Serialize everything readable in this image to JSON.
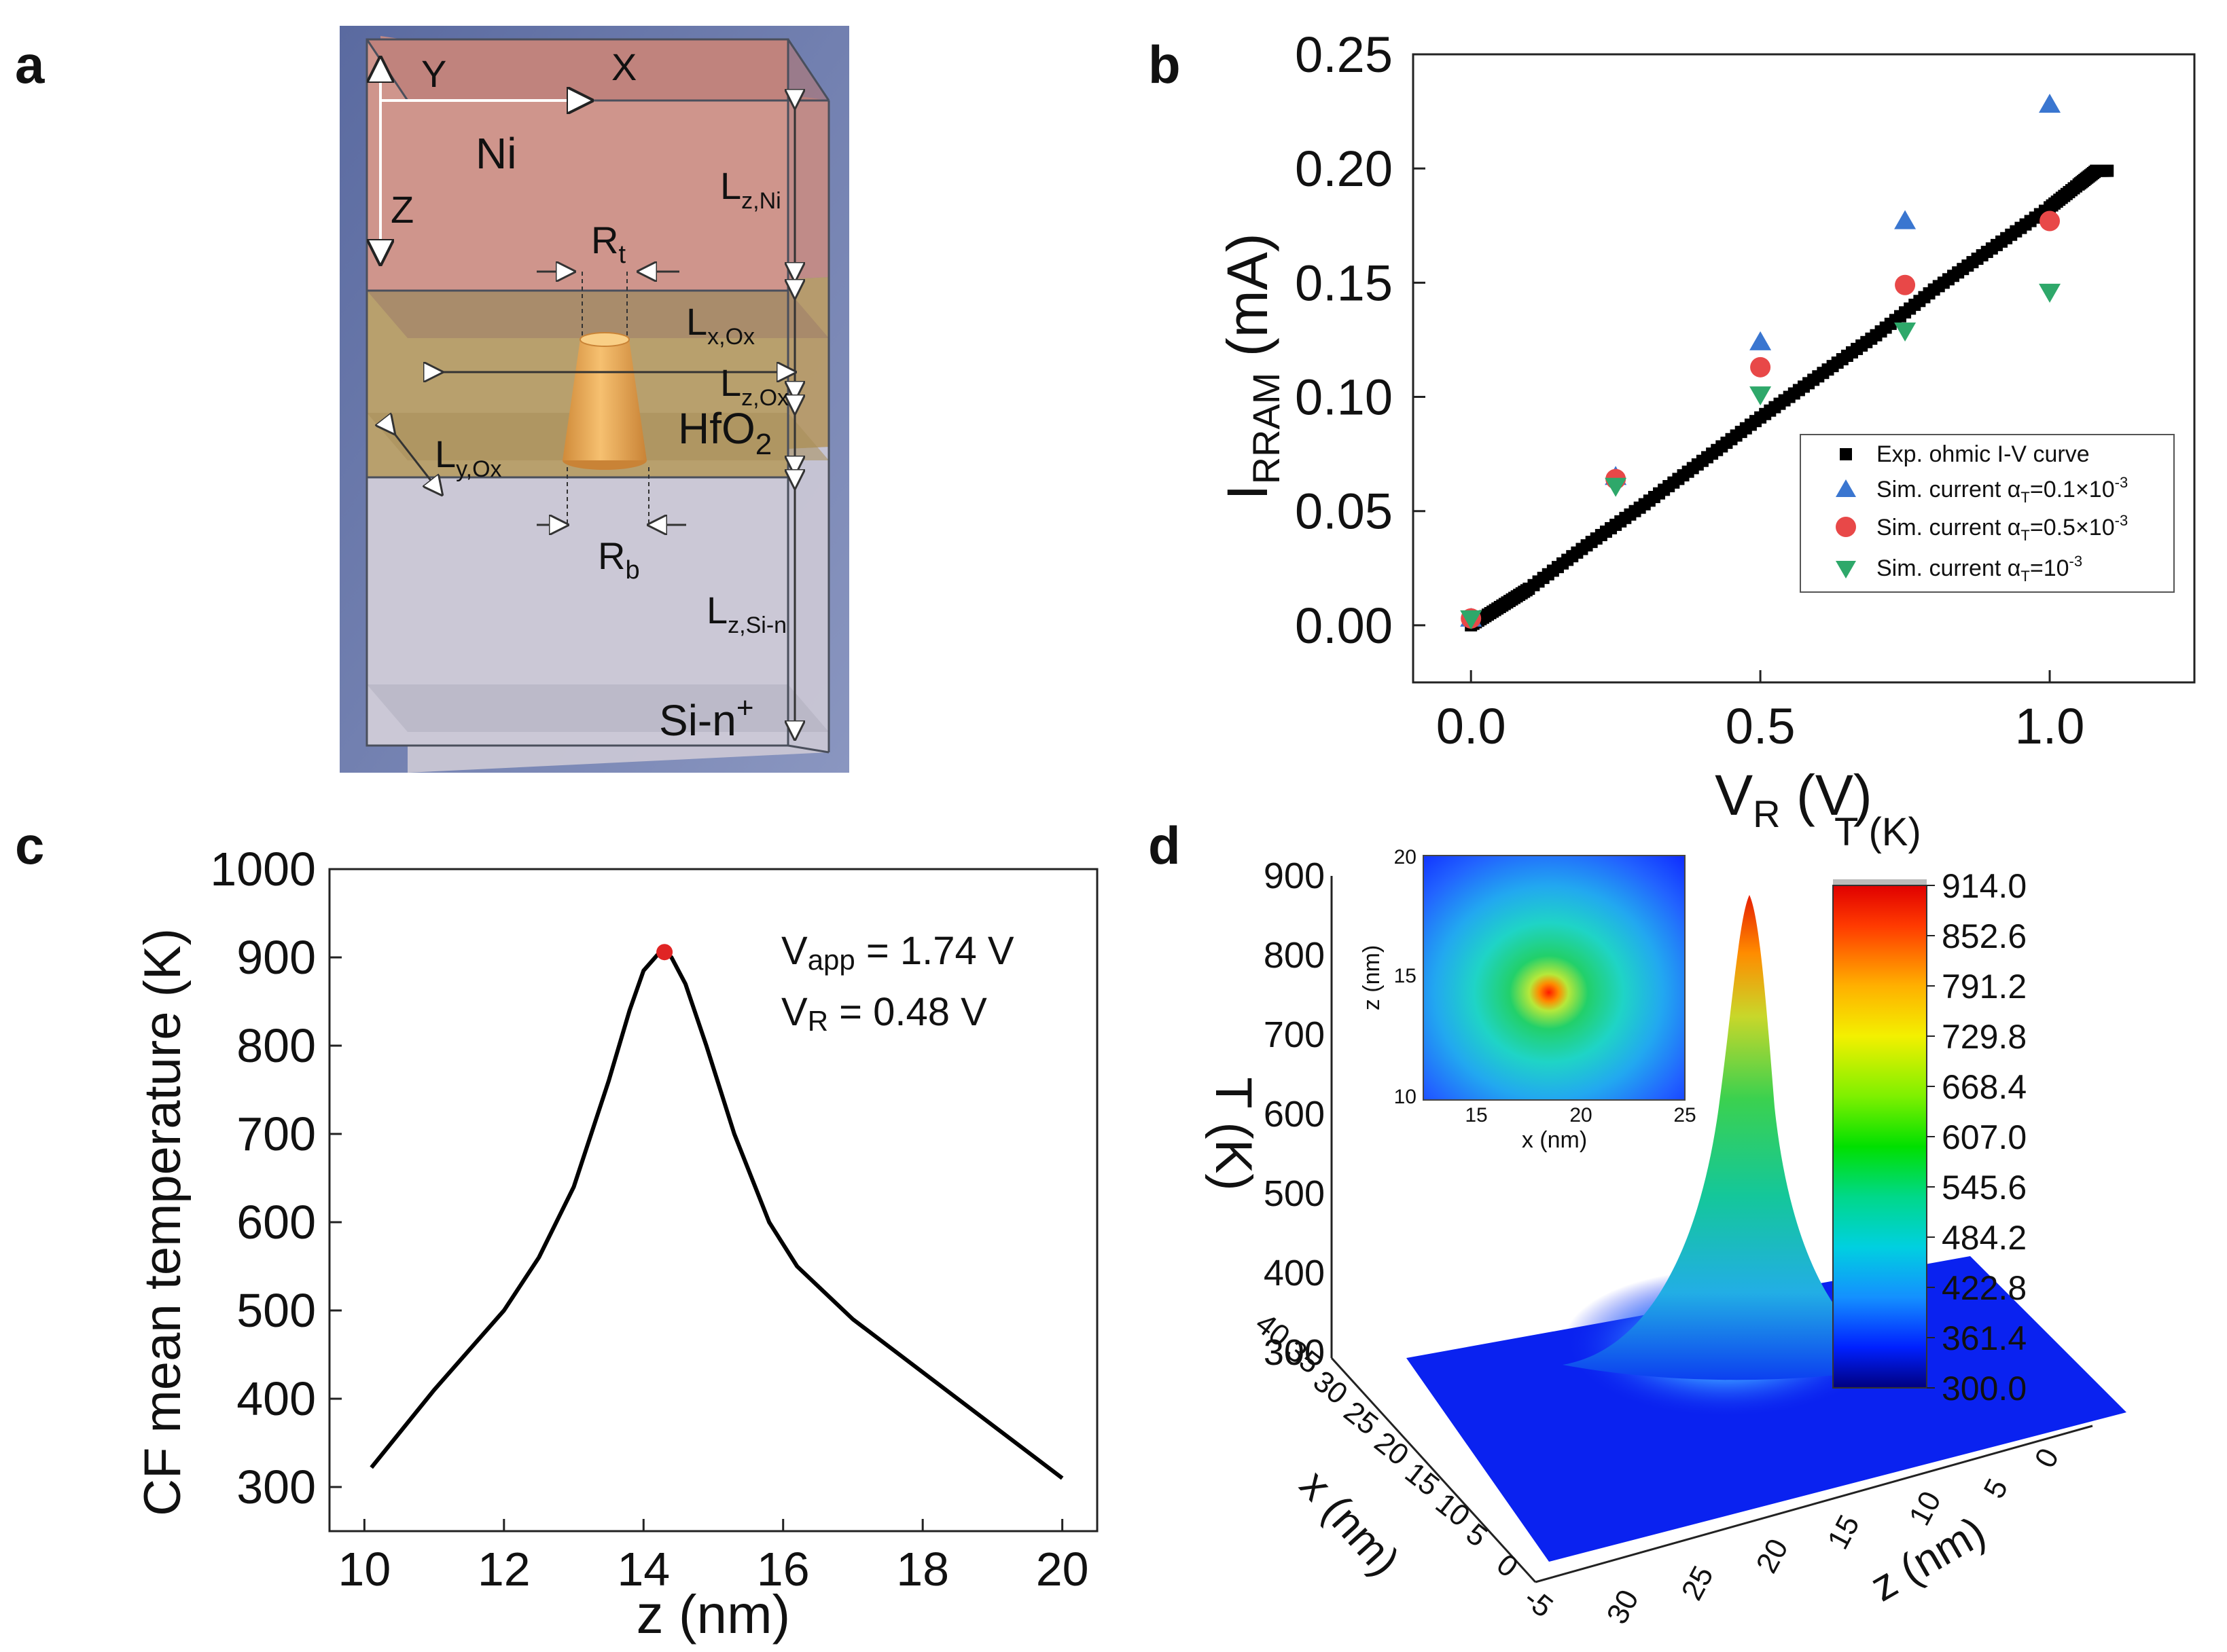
{
  "figure": {
    "panels": {
      "a": "a",
      "b": "b",
      "c": "c",
      "d": "d"
    }
  },
  "panel_a": {
    "axes": {
      "x": "X",
      "y": "Y",
      "z": "Z"
    },
    "layers": {
      "top": "Ni",
      "middle": "HfO",
      "middle_sub": "2",
      "bottom": "Si-n",
      "bottom_sup": "+"
    },
    "dims": {
      "Rt": {
        "main": "R",
        "sub": "t"
      },
      "Rb": {
        "main": "R",
        "sub": "b"
      },
      "LzNi": {
        "main": "L",
        "sub": "z,Ni"
      },
      "LxOx": {
        "main": "L",
        "sub": "x,Ox"
      },
      "LzOx": {
        "main": "L",
        "sub": "z,Ox"
      },
      "LyOx": {
        "main": "L",
        "sub": "y,Ox"
      },
      "LzSin": {
        "main": "L",
        "sub": "z,Si-n"
      }
    },
    "colors": {
      "ni": "#cc8f88",
      "hfo2": "#b89d6a",
      "si": "#c8c5d3",
      "cone": "#f0b05c",
      "edge": "#555a66",
      "bg": "#4d5d8f"
    }
  },
  "chart_data": [
    {
      "panel": "b",
      "type": "scatter",
      "xlabel": "V",
      "xlabel_sub": "R",
      "xlabel_unit": "(V)",
      "ylabel": "I",
      "ylabel_sub": "RRAM",
      "ylabel_unit": "(mA)",
      "xlim": [
        -0.1,
        1.25
      ],
      "ylim": [
        -0.025,
        0.25
      ],
      "xticks": [
        "0.0",
        "0.5",
        "1.0"
      ],
      "xtick_values": [
        0.0,
        0.5,
        1.0
      ],
      "yticks": [
        "0.00",
        "0.05",
        "0.10",
        "0.15",
        "0.20",
        "0.25"
      ],
      "ytick_values": [
        0.0,
        0.05,
        0.1,
        0.15,
        0.2,
        0.25
      ],
      "series": [
        {
          "name": "Exp. ohmic I-V curve",
          "marker": "square",
          "color": "#000000",
          "x": [
            0.0,
            0.05,
            0.1,
            0.2,
            0.3,
            0.4,
            0.5,
            0.6,
            0.7,
            0.8,
            0.9,
            1.0,
            1.05,
            1.08,
            1.1
          ],
          "y": [
            0.0,
            0.008,
            0.016,
            0.035,
            0.053,
            0.072,
            0.091,
            0.109,
            0.127,
            0.147,
            0.165,
            0.183,
            0.193,
            0.199,
            0.199
          ]
        },
        {
          "name": "Sim. current",
          "alpha": "0.1×10",
          "exp": "-3",
          "marker": "triangle-up",
          "color": "#3a76d0",
          "x": [
            0.0,
            0.25,
            0.5,
            0.75,
            1.0
          ],
          "y": [
            0.003,
            0.065,
            0.124,
            0.177,
            0.228
          ]
        },
        {
          "name": "Sim. current",
          "alpha": "0.5×10",
          "exp": "-3",
          "marker": "circle",
          "color": "#e84848",
          "x": [
            0.0,
            0.25,
            0.5,
            0.75,
            1.0
          ],
          "y": [
            0.003,
            0.064,
            0.113,
            0.149,
            0.177
          ]
        },
        {
          "name": "Sim. current",
          "alpha": "10",
          "exp": "-3",
          "marker": "triangle-down",
          "color": "#2ea86a",
          "x": [
            0.0,
            0.25,
            0.5,
            0.75,
            1.0
          ],
          "y": [
            0.003,
            0.061,
            0.101,
            0.129,
            0.146
          ]
        }
      ],
      "legend": {
        "exp": "Exp. ohmic I-V curve",
        "sim": "Sim. current α",
        "sim_sub": "T",
        "sim_eq": "="
      },
      "legend_position": "lower-right"
    },
    {
      "panel": "c",
      "type": "line",
      "xlabel": "z (nm)",
      "ylabel": "CF mean temperature (K)",
      "xlim": [
        9.5,
        20.5
      ],
      "ylim": [
        250,
        1000
      ],
      "xticks": [
        "10",
        "12",
        "14",
        "16",
        "18",
        "20"
      ],
      "xtick_values": [
        10,
        12,
        14,
        16,
        18,
        20
      ],
      "yticks": [
        "300",
        "400",
        "500",
        "600",
        "700",
        "800",
        "900",
        "1000"
      ],
      "ytick_values": [
        300,
        400,
        500,
        600,
        700,
        800,
        900,
        1000
      ],
      "x": [
        10.1,
        11,
        12,
        12.5,
        13,
        13.5,
        13.8,
        14.0,
        14.2,
        14.3,
        14.4,
        14.6,
        14.9,
        15.3,
        15.8,
        16.2,
        17,
        18,
        19,
        20
      ],
      "y": [
        322,
        410,
        500,
        560,
        640,
        760,
        840,
        885,
        903,
        906,
        900,
        870,
        800,
        700,
        600,
        550,
        490,
        430,
        370,
        310
      ],
      "peak": {
        "x": 14.3,
        "y": 906,
        "color": "#e02424"
      },
      "annotation": {
        "line1": "V",
        "line1_sub": "app",
        "line1_rest": " = 1.74 V",
        "line2": "V",
        "line2_sub": "R",
        "line2_rest": " = 0.48 V"
      },
      "line_color": "#000000"
    },
    {
      "panel": "d",
      "type": "heatmap",
      "zlabel": "T (K)",
      "xlabel": "x (nm)",
      "ylabel": "z (nm)",
      "zticks": [
        "300",
        "400",
        "500",
        "600",
        "700",
        "800",
        "900"
      ],
      "zlim": [
        300,
        914
      ],
      "x_axis_ticks": [
        "-5",
        "0",
        "5",
        "10",
        "15",
        "20",
        "25",
        "30",
        "35",
        "40"
      ],
      "z_axis_ticks": [
        "0",
        "5",
        "10",
        "15",
        "20",
        "25",
        "30"
      ],
      "peak_temperature": 914.0,
      "colorbar": {
        "title": "T (K)",
        "ticks": [
          "914.0",
          "852.6",
          "791.2",
          "729.8",
          "668.4",
          "607.0",
          "545.6",
          "484.2",
          "422.8",
          "361.4",
          "300.0"
        ],
        "values": [
          914.0,
          852.6,
          791.2,
          729.8,
          668.4,
          607.0,
          545.6,
          484.2,
          422.8,
          361.4,
          300.0
        ]
      },
      "inset": {
        "xlabel": "x (nm)",
        "ylabel": "z (nm)",
        "xticks": [
          "15",
          "20",
          "25"
        ],
        "xtick_values": [
          15,
          20,
          25
        ],
        "yticks": [
          "10",
          "15",
          "20"
        ],
        "ytick_values": [
          10,
          15,
          20
        ],
        "xlim": [
          12.5,
          25
        ],
        "ylim": [
          10,
          20
        ],
        "hotspot": {
          "x": 18.5,
          "z": 14.3
        }
      }
    }
  ]
}
